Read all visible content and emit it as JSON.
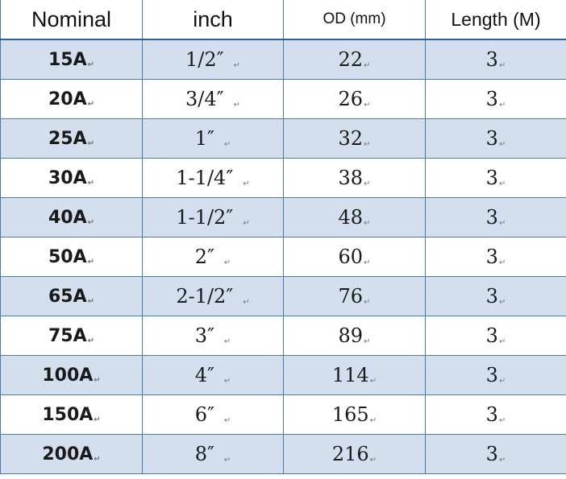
{
  "table": {
    "headers": {
      "nominal": "Nominal",
      "inch": "inch",
      "od": "OD (mm)",
      "length": "Length (M)"
    },
    "paragraph_mark": "↵",
    "rows": [
      {
        "nominal": "15A",
        "inch": "1/2″",
        "od": "22",
        "length": "3"
      },
      {
        "nominal": "20A",
        "inch": "3/4″",
        "od": "26",
        "length": "3"
      },
      {
        "nominal": "25A",
        "inch": "1″",
        "od": "32",
        "length": "3"
      },
      {
        "nominal": "30A",
        "inch": "1-1/4″",
        "od": "38",
        "length": "3"
      },
      {
        "nominal": "40A",
        "inch": "1-1/2″",
        "od": "48",
        "length": "3"
      },
      {
        "nominal": "50A",
        "inch": "2″",
        "od": "60",
        "length": "3"
      },
      {
        "nominal": "65A",
        "inch": "2-1/2″",
        "od": "76",
        "length": "3"
      },
      {
        "nominal": "75A",
        "inch": "3″",
        "od": "89",
        "length": "3"
      },
      {
        "nominal": "100A",
        "inch": "4″",
        "od": "114",
        "length": "3"
      },
      {
        "nominal": "150A",
        "inch": "6″",
        "od": "165",
        "length": "3"
      },
      {
        "nominal": "200A",
        "inch": "8″",
        "od": "216",
        "length": "3"
      }
    ]
  }
}
